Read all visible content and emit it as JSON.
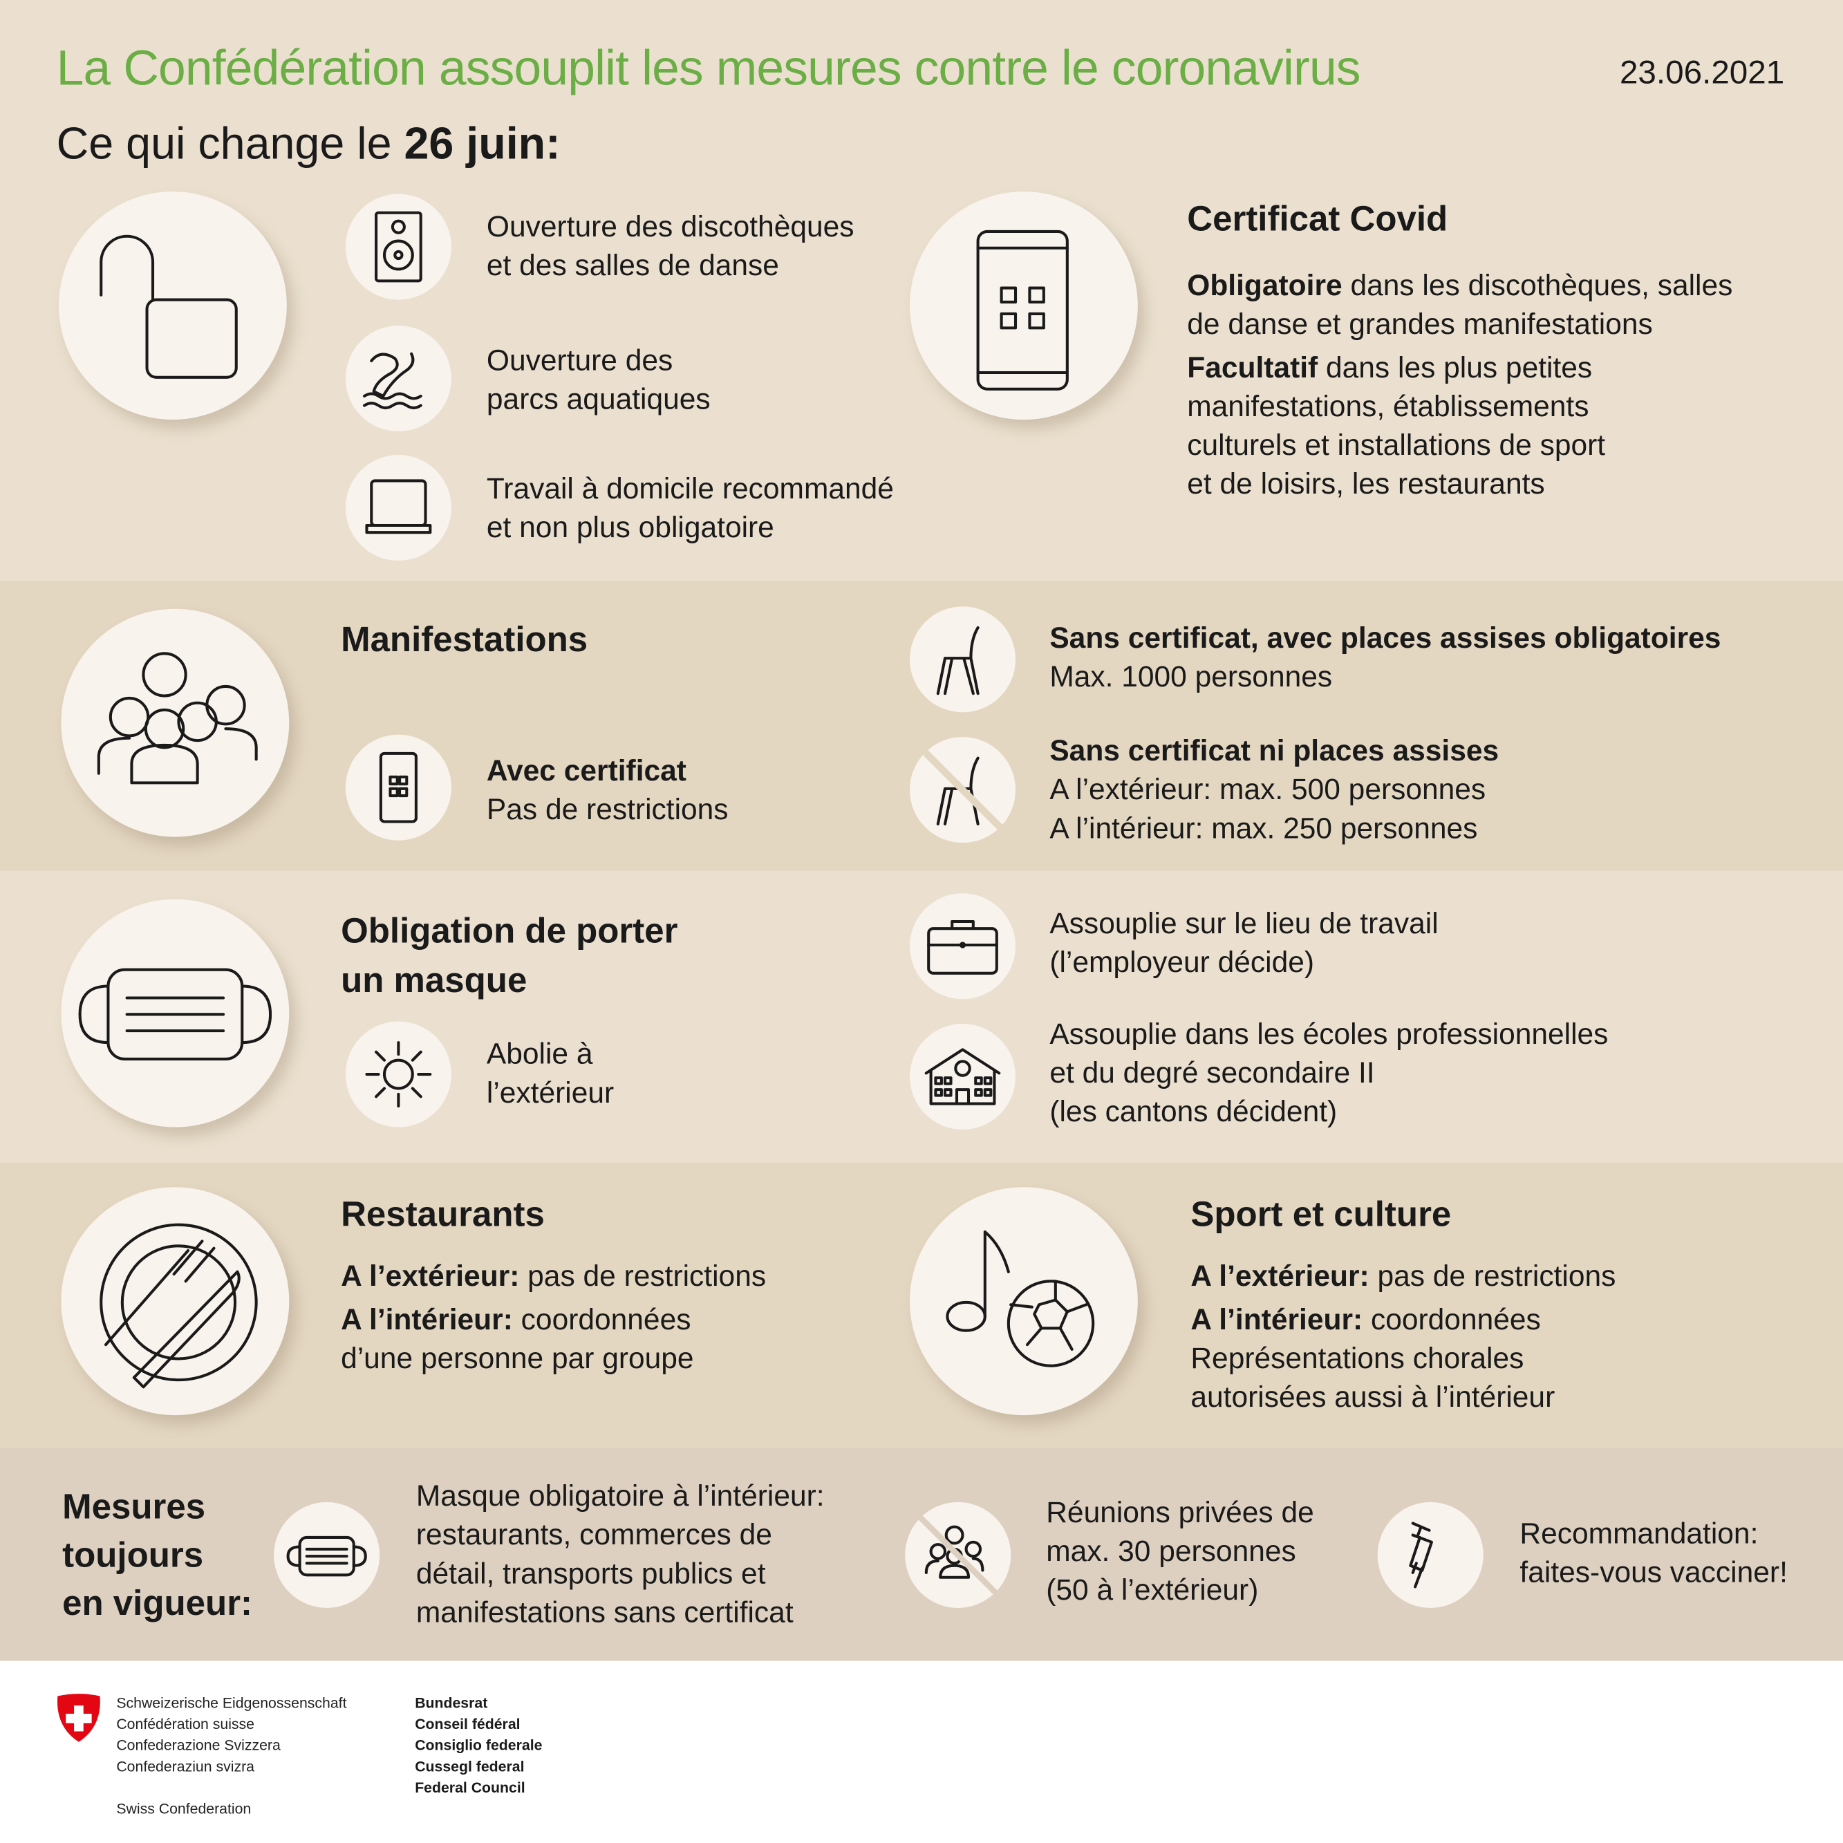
{
  "header": {
    "title": "La Confédération assouplit les mesures contre le coronavirus",
    "date": "23.06.2021",
    "subtitle_prefix": "Ce qui change le ",
    "subtitle_bold": "26 juin:"
  },
  "colors": {
    "title_green": "#6aae45",
    "bg": "#ebe0cf",
    "band": "#e4d7c2",
    "bottom_band": "#ddd0c0",
    "circle": "#f9f3ed",
    "swiss_red": "#e30613"
  },
  "changes": {
    "icon": "unlock-icon",
    "items": [
      {
        "icon": "speaker-icon",
        "lines": [
          "Ouverture des discothèques",
          "et des salles de danse"
        ]
      },
      {
        "icon": "water-slide-icon",
        "lines": [
          "Ouverture des",
          "parcs aquatiques"
        ]
      },
      {
        "icon": "laptop-icon",
        "lines": [
          "Travail à domicile recommandé",
          "et non plus obligatoire"
        ]
      }
    ]
  },
  "certificat": {
    "icon": "phone-qr-icon",
    "title": "Certificat Covid",
    "b1": "Obligatoire",
    "t1a": " dans les discothèques, salles",
    "t1b": "de danse et grandes manifestations",
    "b2": "Facultatif",
    "t2a": " dans les plus petites",
    "t2b": "manifestations, établissements",
    "t2c": "culturels et installations de sport",
    "t2d": "et de loisirs, les restaurants"
  },
  "manifestations": {
    "icon": "crowd-icon",
    "title": "Manifestations",
    "with_cert": {
      "icon": "phone-qr-icon",
      "bold": "Avec certificat",
      "text": "Pas de restrictions"
    },
    "seated": {
      "icon": "chair-icon",
      "bold": "Sans certificat, avec places assises obligatoires",
      "text": "Max. 1000 personnes"
    },
    "unseated": {
      "icon": "no-chair-icon",
      "bold": "Sans certificat ni places assises",
      "l1": "A l’extérieur: max. 500 personnes",
      "l2": "A l’intérieur: max. 250 personnes"
    }
  },
  "masque": {
    "icon": "mask-icon",
    "title1": "Obligation de porter",
    "title2": "un masque",
    "outdoor": {
      "icon": "sun-icon",
      "l1": "Abolie à",
      "l2": "l’extérieur"
    },
    "work": {
      "icon": "briefcase-icon",
      "l1": "Assouplie sur le lieu de travail",
      "l2": "(l’employeur décide)"
    },
    "school": {
      "icon": "school-icon",
      "l1": "Assouplie dans les écoles professionnelles",
      "l2": "et du degré secondaire II",
      "l3": "(les cantons décident)"
    }
  },
  "restaurants": {
    "icon": "plate-cutlery-icon",
    "title": "Restaurants",
    "b1": "A l’extérieur:",
    "t1": " pas de restrictions",
    "b2": "A l’intérieur:",
    "t2": " coordonnées",
    "t3": "d’une personne par groupe"
  },
  "sport": {
    "icon": "music-football-icon",
    "title": "Sport et culture",
    "b1": "A l’extérieur:",
    "t1": " pas de restrictions",
    "b2": "A l’intérieur:",
    "t2": " coordonnées",
    "t3": "Représentations chorales",
    "t4": "autorisées aussi à l’intérieur"
  },
  "still": {
    "title1": "Mesures",
    "title2": "toujours",
    "title3": "en vigueur:",
    "mask": {
      "icon": "mask-icon",
      "lines": [
        "Masque obligatoire à l’intérieur:",
        "restaurants, commerces de",
        "détail, transports publics et",
        "manifestations sans certificat"
      ]
    },
    "meetings": {
      "icon": "no-crowd-icon",
      "lines": [
        "Réunions privées de",
        "max. 30 personnes",
        "(50 à l’extérieur)"
      ]
    },
    "vaccine": {
      "icon": "syringe-icon",
      "lines": [
        "Recommandation:",
        "faites-vous vacciner!"
      ]
    }
  },
  "footer": {
    "names": [
      "Schweizerische Eidgenossenschaft",
      "Confédération suisse",
      "Confederazione Svizzera",
      "Confederaziun svizra"
    ],
    "english": "Swiss Confederation",
    "council": [
      "Bundesrat",
      "Conseil fédéral",
      "Consiglio federale",
      "Cussegl federal",
      "Federal Council"
    ]
  }
}
